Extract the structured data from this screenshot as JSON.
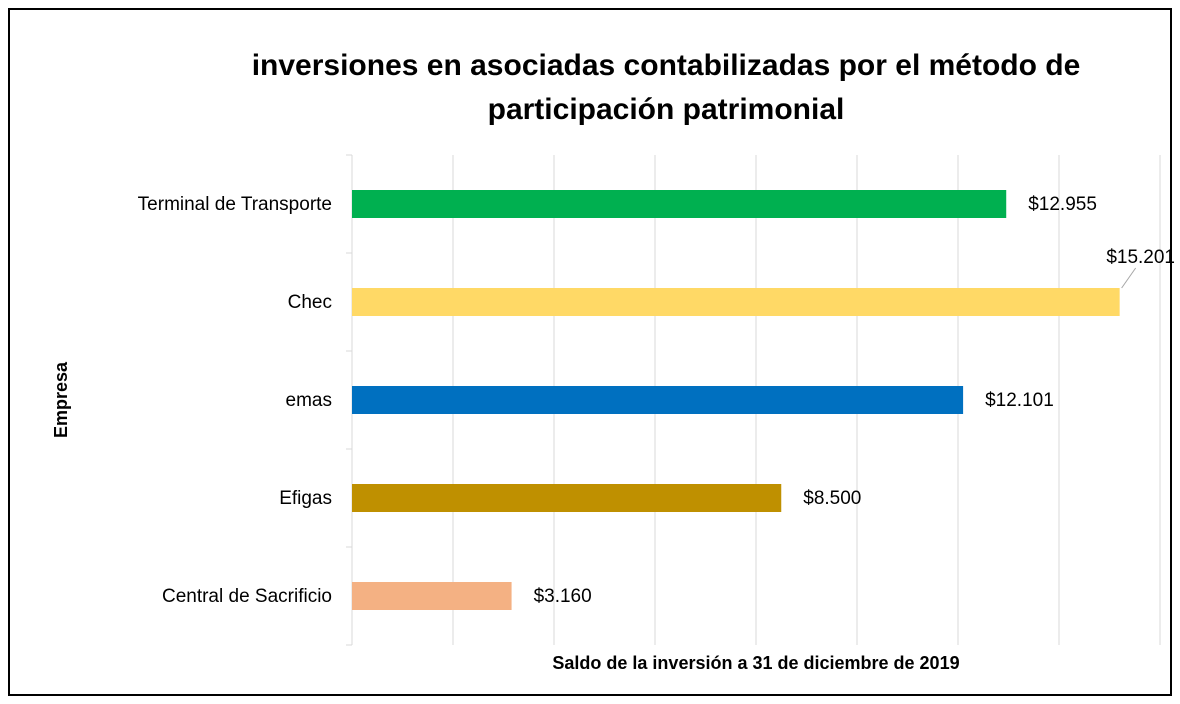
{
  "chart_data": {
    "type": "barh",
    "title": "inversiones en asociadas contabilizadas por el método de participación patrimonial",
    "x_label": "Saldo de la inversión a 31 de diciembre de 2019",
    "y_label": "Empresa",
    "categories": [
      "Terminal de Transporte",
      "Chec",
      "emas",
      "Efigas",
      "Central de Sacrificio"
    ],
    "values": [
      12955,
      15201,
      12101,
      8500,
      3160
    ],
    "value_labels": [
      "$12.955",
      "$15.201",
      "$12.101",
      "$8.500",
      "$3.160"
    ],
    "colors": [
      "#00b050",
      "#ffd966",
      "#0070c0",
      "#bf9000",
      "#f4b183"
    ],
    "xlim": [
      0,
      16000
    ],
    "xticks": [
      0,
      2000,
      4000,
      6000,
      8000,
      10000,
      12000,
      14000,
      16000
    ],
    "grid": true
  }
}
